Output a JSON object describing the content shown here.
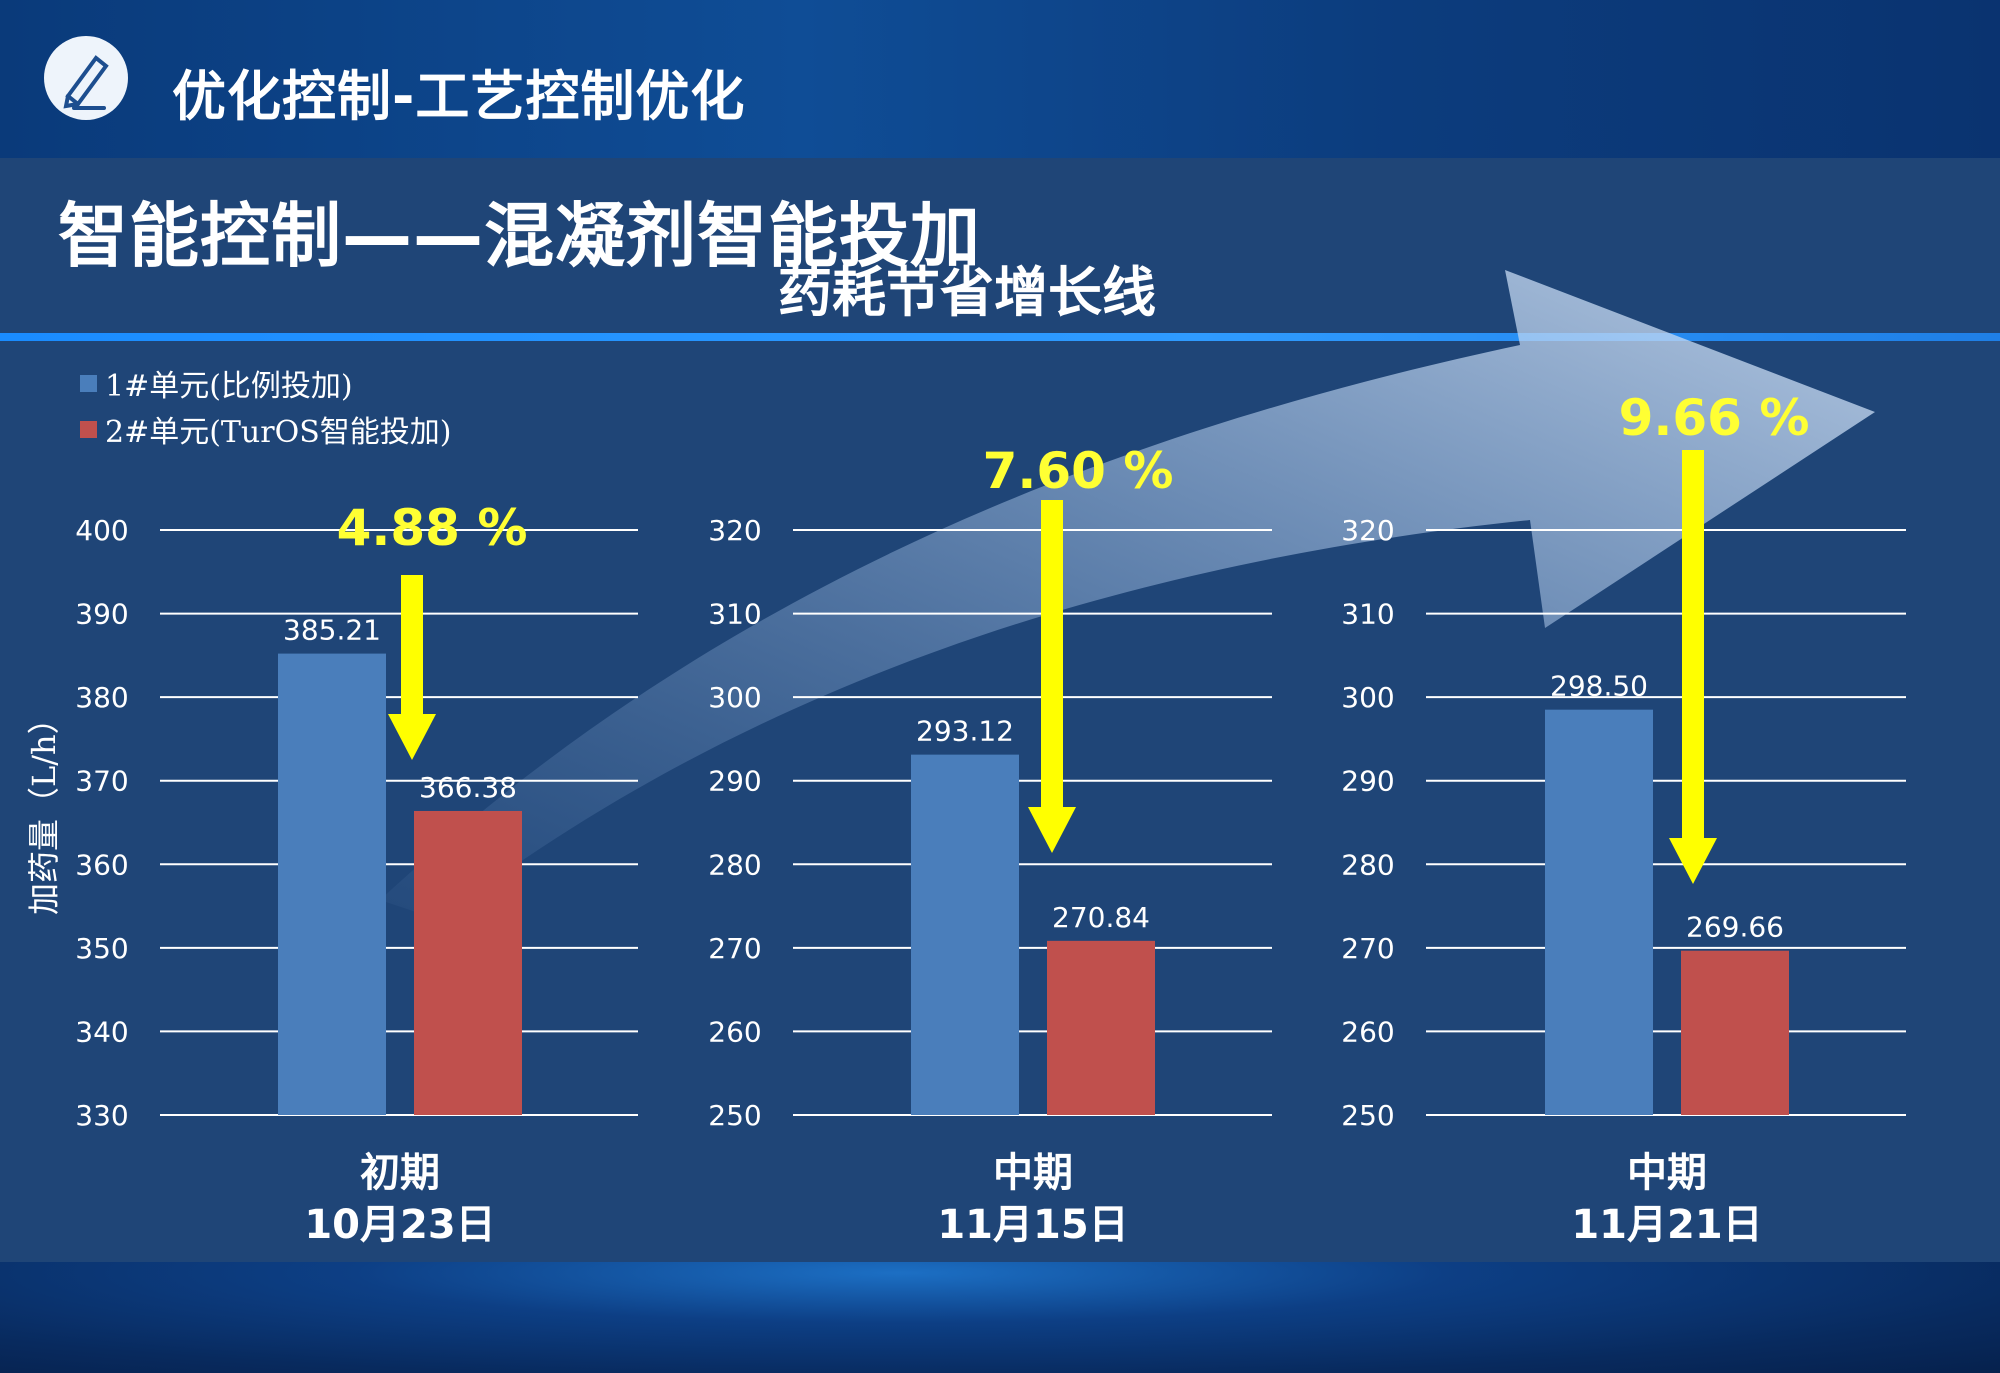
{
  "header": {
    "title": "优化控制-工艺控制优化",
    "logo_icon": "pencil-icon"
  },
  "slide_title": "智能控制——混凝剂智能投加",
  "banner_title": "药耗节省增长线",
  "colors": {
    "series1": "#4a7ebb",
    "series2": "#c0504d",
    "arrow": "#ffff00",
    "percent": "#ffff33"
  },
  "legend": [
    {
      "label": "1#单元(比例投加)"
    },
    {
      "label": "2#单元(TurOS智能投加)"
    }
  ],
  "chart_data": [
    {
      "type": "bar",
      "ylabel": "加药量（L/h）",
      "ylim": [
        330,
        400
      ],
      "yticks": [
        "330",
        "340",
        "350",
        "360",
        "370",
        "380",
        "390",
        "400"
      ],
      "category_line1": "初期",
      "category_line2": "10月23日",
      "series": [
        {
          "name": "1#单元(比例投加)",
          "value": 385.21,
          "label": "385.21"
        },
        {
          "name": "2#单元(TurOS智能投加)",
          "value": 366.38,
          "label": "366.38"
        }
      ],
      "reduction": "4.88 %"
    },
    {
      "type": "bar",
      "ylim": [
        250,
        320
      ],
      "yticks": [
        "250",
        "260",
        "270",
        "280",
        "290",
        "300",
        "310",
        "320"
      ],
      "category_line1": "中期",
      "category_line2": "11月15日",
      "series": [
        {
          "name": "1#单元(比例投加)",
          "value": 293.12,
          "label": "293.12"
        },
        {
          "name": "2#单元(TurOS智能投加)",
          "value": 270.84,
          "label": "270.84"
        }
      ],
      "reduction": "7.60 %"
    },
    {
      "type": "bar",
      "ylim": [
        250,
        320
      ],
      "yticks": [
        "250",
        "260",
        "270",
        "280",
        "290",
        "300",
        "310",
        "320"
      ],
      "category_line1": "中期",
      "category_line2": "11月21日",
      "series": [
        {
          "name": "1#单元(比例投加)",
          "value": 298.5,
          "label": "298.50"
        },
        {
          "name": "2#单元(TurOS智能投加)",
          "value": 269.66,
          "label": "269.66"
        }
      ],
      "reduction": "9.66 %"
    }
  ]
}
